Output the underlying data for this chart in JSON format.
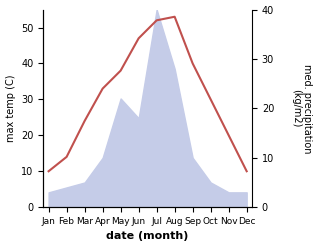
{
  "months": [
    "Jan",
    "Feb",
    "Mar",
    "Apr",
    "May",
    "Jun",
    "Jul",
    "Aug",
    "Sep",
    "Oct",
    "Nov",
    "Dec"
  ],
  "temperature": [
    10,
    14,
    24,
    33,
    38,
    47,
    52,
    53,
    40,
    30,
    20,
    10
  ],
  "precipitation": [
    3,
    4,
    5,
    10,
    22,
    18,
    40,
    28,
    10,
    5,
    3,
    3
  ],
  "temp_color": "#c0504d",
  "precip_fill_color": "#c5cce8",
  "xlabel": "date (month)",
  "ylabel_left": "max temp (C)",
  "ylabel_right": "med. precipitation\n(kg/m2)",
  "ylim_left": [
    0,
    55
  ],
  "ylim_right": [
    0,
    40
  ],
  "yticks_left": [
    0,
    10,
    20,
    30,
    40,
    50
  ],
  "yticks_right": [
    0,
    10,
    20,
    30,
    40
  ],
  "temp_linewidth": 1.5,
  "xlabel_fontsize": 8,
  "ylabel_fontsize": 7,
  "tick_fontsize": 7,
  "xtick_fontsize": 6.5
}
